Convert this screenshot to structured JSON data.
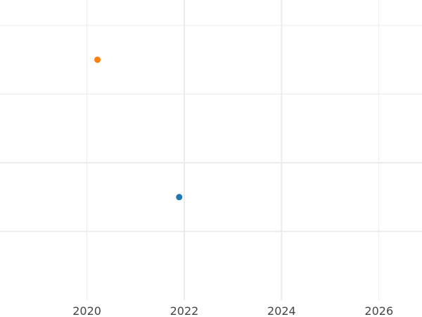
{
  "chart_data": {
    "type": "scatter",
    "title": "",
    "xlabel": "",
    "ylabel": "",
    "x_axis_type": "date",
    "xlim": [
      "2018-03-20",
      "2026-11-20"
    ],
    "ylim": [
      0,
      4.37
    ],
    "x_ticks": [
      "2020",
      "2022",
      "2024",
      "2026"
    ],
    "y_gridlines": [
      1,
      2,
      3,
      4
    ],
    "y_tick_labels_shown": false,
    "grid": true,
    "legend": "none",
    "points": [
      {
        "x": "2020-03-20",
        "y": 3.5,
        "color": "#ff7f0e"
      },
      {
        "x": "2021-11-24",
        "y": 1.5,
        "color": "#1f77b4"
      }
    ]
  }
}
